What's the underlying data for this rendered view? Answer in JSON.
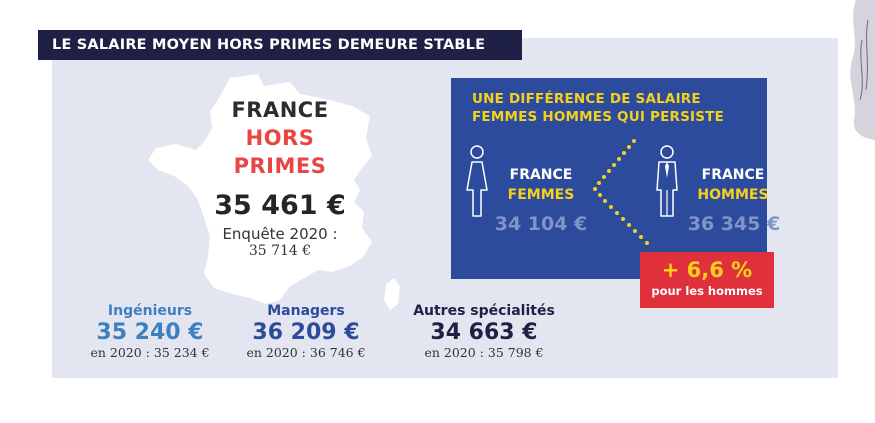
{
  "title": "LE SALAIRE MOYEN HORS PRIMES DEMEURE STABLE",
  "overall": {
    "region": "FRANCE",
    "subtitle": "HORS PRIMES",
    "value": "35 461 €",
    "survey_label": "Enquête 2020 :",
    "survey_value": "35 714 €"
  },
  "gender_gap": {
    "title_line1": "UNE DIFFÉRENCE DE SALAIRE",
    "title_line2": "FEMMES HOMMES QUI PERSISTE",
    "women": {
      "line1": "FRANCE",
      "line2": "FEMMES",
      "value": "34 104 €"
    },
    "men": {
      "line1": "FRANCE",
      "line2": "HOMMES",
      "value": "36 345 €"
    },
    "difference": "+ 6,6 %",
    "difference_note": "pour les hommes"
  },
  "categories": [
    {
      "label": "Ingénieurs",
      "value": "35 240 €",
      "previous": "en 2020 : 35 234 €"
    },
    {
      "label": "Managers",
      "value": "36 209 €",
      "previous": "en 2020 : 36 746 €"
    },
    {
      "label": "Autres spécialités",
      "value": "34 663 €",
      "previous": "en 2020 : 35 798 €"
    }
  ],
  "colors": {
    "navy": "#1f2046",
    "panel_bg": "#e3e6f1",
    "gap_box": "#2c4b9c",
    "accent_red": "#e84545",
    "accent_yellow": "#f4d21b",
    "engineers": "#3e7fc0",
    "managers": "#2c4b9c",
    "others": "#1f2046"
  },
  "icons": [
    "woman-icon",
    "man-icon",
    "france-map-icon"
  ]
}
